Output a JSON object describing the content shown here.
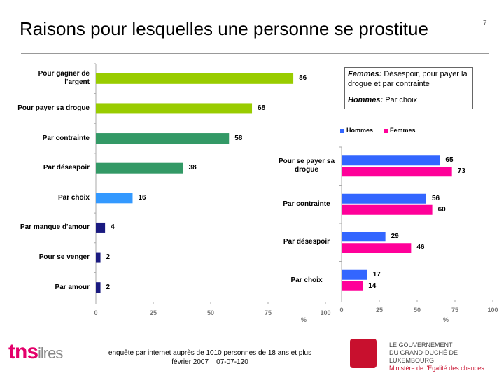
{
  "slide": {
    "title": "Raisons pour lesquelles une personne se prostitue",
    "page_number": "7",
    "footer": [
      "enquête par internet auprès de 1010 personnes de 18 ans et plus",
      "février 2007",
      "07-07-120"
    ],
    "logo_left": [
      "tns",
      "ilres"
    ],
    "logo_right": [
      "LE GOUVERNEMENT",
      "DU GRAND-DUCHÉ DE LUXEMBOURG",
      "Ministère de l'Égalité des chances"
    ]
  },
  "annotation": [
    {
      "label": "Femmes:",
      "text": "Désespoir, pour payer la drogue et par contrainte"
    },
    {
      "label": "Hommes:",
      "text": "Par choix"
    }
  ],
  "chart_data": [
    {
      "type": "hbar",
      "x_label": "%",
      "categories": [
        "Pour gagner de l'argent",
        "Pour payer sa drogue",
        "Par contrainte",
        "Par désespoir",
        "Par choix",
        "Par manque d'amour",
        "Pour se venger",
        "Par amour"
      ],
      "values": [
        86,
        68,
        58,
        38,
        16,
        4,
        2,
        2
      ],
      "colors": [
        "#99cc00",
        "#99cc00",
        "#339966",
        "#339966",
        "#3399ff",
        "#1a1a80",
        "#1a1a80",
        "#1a1a80"
      ],
      "xlim": [
        0,
        100
      ],
      "xticks": [
        0,
        25,
        50,
        75,
        100
      ]
    },
    {
      "type": "hbar",
      "x_label": "%",
      "categories": [
        "Pour se payer sa drogue",
        "Par contrainte",
        "Par désespoir",
        "Par choix"
      ],
      "series": [
        {
          "name": "Hommes",
          "color": "#3366ff",
          "values": [
            65,
            56,
            29,
            17
          ]
        },
        {
          "name": "Femmes",
          "color": "#ff0099",
          "values": [
            73,
            60,
            46,
            14
          ]
        }
      ],
      "xlim": [
        0,
        100
      ],
      "xticks": [
        0,
        25,
        50,
        75,
        100
      ],
      "legend": "top"
    }
  ]
}
